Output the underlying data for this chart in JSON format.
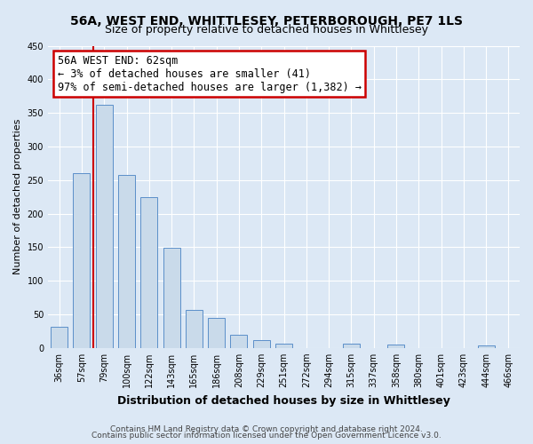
{
  "title": "56A, WEST END, WHITTLESEY, PETERBOROUGH, PE7 1LS",
  "subtitle": "Size of property relative to detached houses in Whittlesey",
  "xlabel": "Distribution of detached houses by size in Whittlesey",
  "ylabel": "Number of detached properties",
  "footnote1": "Contains HM Land Registry data © Crown copyright and database right 2024.",
  "footnote2": "Contains public sector information licensed under the Open Government Licence v3.0.",
  "bin_labels": [
    "36sqm",
    "57sqm",
    "79sqm",
    "100sqm",
    "122sqm",
    "143sqm",
    "165sqm",
    "186sqm",
    "208sqm",
    "229sqm",
    "251sqm",
    "272sqm",
    "294sqm",
    "315sqm",
    "337sqm",
    "358sqm",
    "380sqm",
    "401sqm",
    "423sqm",
    "444sqm",
    "466sqm"
  ],
  "bar_heights": [
    32,
    260,
    362,
    257,
    225,
    149,
    57,
    45,
    20,
    11,
    6,
    0,
    0,
    6,
    0,
    5,
    0,
    0,
    0,
    4,
    0
  ],
  "bar_color": "#c9daea",
  "bar_edge_color": "#5b8fc9",
  "annotation_title": "56A WEST END: 62sqm",
  "annotation_line1": "← 3% of detached houses are smaller (41)",
  "annotation_line2": "97% of semi-detached houses are larger (1,382) →",
  "annotation_box_color": "#ffffff",
  "annotation_box_edge": "#cc0000",
  "vline_color": "#cc0000",
  "vline_x": 1.5,
  "ylim": [
    0,
    450
  ],
  "yticks": [
    0,
    50,
    100,
    150,
    200,
    250,
    300,
    350,
    400,
    450
  ],
  "background_color": "#dce8f5",
  "plot_background": "#dce8f5",
  "title_fontsize": 10,
  "subtitle_fontsize": 9,
  "ylabel_fontsize": 8,
  "xlabel_fontsize": 9,
  "tick_fontsize": 7,
  "annotation_fontsize": 8.5,
  "footnote_fontsize": 6.5
}
